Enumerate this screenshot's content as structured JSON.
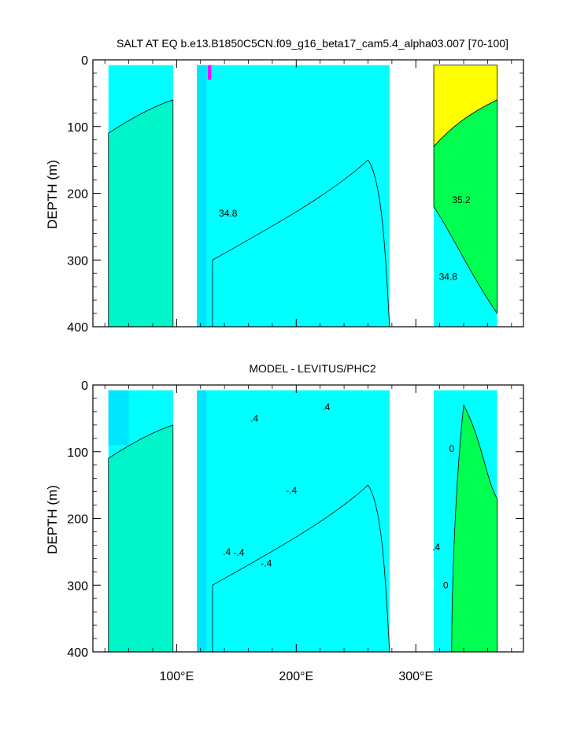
{
  "chart_data": [
    {
      "type": "contour",
      "title": "SALT AT EQ b.e13.B1850C5CN.f09_g16_beta17_cam5.4_alpha03.007 [70-100]",
      "xlabel": "",
      "ylabel": "DEPTH (m)",
      "xlim": [
        30,
        390
      ],
      "ylim": [
        0,
        400
      ],
      "y_inverted": true,
      "x_ticks": [
        {
          "value": 100,
          "label": "100°E"
        },
        {
          "value": 200,
          "label": "200°E"
        },
        {
          "value": 300,
          "label": "300°E"
        }
      ],
      "y_ticks": [
        0,
        100,
        200,
        300,
        400
      ],
      "contour_labels": [
        {
          "text": "34.8",
          "x": 143,
          "y": 235
        },
        {
          "text": "35.2",
          "x": 338,
          "y": 215
        },
        {
          "text": "34.8",
          "x": 327,
          "y": 330
        }
      ],
      "colors": {
        "base": "#00ffff",
        "low": "#00e5ff",
        "mid": "#00f5c8",
        "high": "#00ff50",
        "max": "#ffff00",
        "extreme": "#ff00ff"
      }
    },
    {
      "type": "contour",
      "title": "MODEL - LEVITUS/PHC2",
      "xlabel": "",
      "ylabel": "DEPTH (m)",
      "xlim": [
        30,
        390
      ],
      "ylim": [
        0,
        400
      ],
      "y_inverted": true,
      "x_ticks": [
        {
          "value": 100,
          "label": "100°E"
        },
        {
          "value": 200,
          "label": "200°E"
        },
        {
          "value": 300,
          "label": "300°E"
        }
      ],
      "y_ticks": [
        0,
        100,
        200,
        300,
        400
      ],
      "contour_labels": [
        {
          "text": ".4",
          "x": 142,
          "y": 255
        },
        {
          "text": ".4",
          "x": 165,
          "y": 55
        },
        {
          "text": ".4",
          "x": 225,
          "y": 38
        },
        {
          "text": "-.4",
          "x": 196,
          "y": 163
        },
        {
          "text": "-.4",
          "x": 152,
          "y": 256
        },
        {
          "text": "-.4",
          "x": 175,
          "y": 272
        },
        {
          "text": "0",
          "x": 330,
          "y": 100
        },
        {
          "text": "0",
          "x": 325,
          "y": 305
        },
        {
          "text": ".4",
          "x": 317,
          "y": 248
        }
      ],
      "colors": {
        "base": "#00ffff",
        "low": "#00e5ff",
        "mid": "#00f5c8",
        "high": "#00ff50"
      }
    }
  ]
}
